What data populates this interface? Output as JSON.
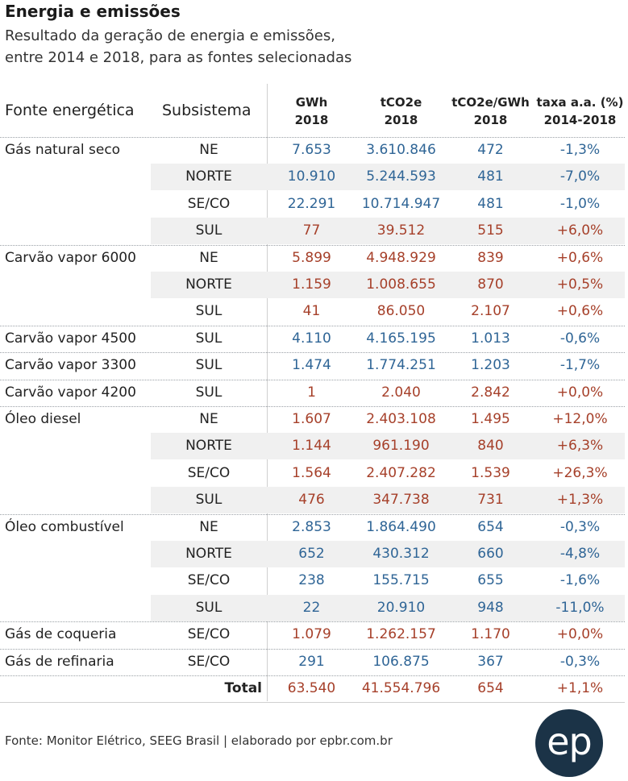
{
  "title": "Energia e emissões",
  "subtitle_line1": "Resultado da geração de energia e emissões,",
  "subtitle_line2": "entre 2014 e 2018, para as fontes selecionadas",
  "footer": "Fonte: Monitor Elétrico, SEEG Brasil | elaborado por epbr.com.br",
  "logo_text": "ep",
  "colors": {
    "negative": "#2f6596",
    "positive": "#a6402a",
    "shade": "#f0f0f0",
    "logo": "#1b3347"
  },
  "chart_data": {
    "type": "table",
    "title": "Energia e emissões",
    "subtitle": "Resultado da geração de energia e emissões, entre 2014 e 2018, para as fontes selecionadas",
    "columns": [
      {
        "label": "Fonte energética"
      },
      {
        "label": "Subsistema"
      },
      {
        "label": "GWh",
        "sub": "2018"
      },
      {
        "label": "tCO2e",
        "sub": "2018"
      },
      {
        "label": "tCO2e/GWh",
        "sub": "2018"
      },
      {
        "label": "taxa a.a. (%)",
        "sub": "2014-2018"
      }
    ],
    "groups": [
      {
        "fonte": "Gás natural seco",
        "rows": [
          {
            "sub": "NE",
            "gwh": "7.653",
            "tco2e": "3.610.846",
            "ratio": "472",
            "taxa": "-1,3%"
          },
          {
            "sub": "NORTE",
            "gwh": "10.910",
            "tco2e": "5.244.593",
            "ratio": "481",
            "taxa": "-7,0%"
          },
          {
            "sub": "SE/CO",
            "gwh": "22.291",
            "tco2e": "10.714.947",
            "ratio": "481",
            "taxa": "-1,0%"
          },
          {
            "sub": "SUL",
            "gwh": "77",
            "tco2e": "39.512",
            "ratio": "515",
            "taxa": "+6,0%"
          }
        ]
      },
      {
        "fonte": "Carvão vapor 6000",
        "rows": [
          {
            "sub": "NE",
            "gwh": "5.899",
            "tco2e": "4.948.929",
            "ratio": "839",
            "taxa": "+0,6%"
          },
          {
            "sub": "NORTE",
            "gwh": "1.159",
            "tco2e": "1.008.655",
            "ratio": "870",
            "taxa": "+0,5%"
          },
          {
            "sub": "SUL",
            "gwh": "41",
            "tco2e": "86.050",
            "ratio": "2.107",
            "taxa": "+0,6%"
          }
        ]
      },
      {
        "fonte": "Carvão vapor 4500",
        "rows": [
          {
            "sub": "SUL",
            "gwh": "4.110",
            "tco2e": "4.165.195",
            "ratio": "1.013",
            "taxa": "-0,6%"
          }
        ]
      },
      {
        "fonte": "Carvão vapor 3300",
        "rows": [
          {
            "sub": "SUL",
            "gwh": "1.474",
            "tco2e": "1.774.251",
            "ratio": "1.203",
            "taxa": "-1,7%"
          }
        ]
      },
      {
        "fonte": "Carvão vapor 4200",
        "rows": [
          {
            "sub": "SUL",
            "gwh": "1",
            "tco2e": "2.040",
            "ratio": "2.842",
            "taxa": "+0,0%"
          }
        ]
      },
      {
        "fonte": "Óleo diesel",
        "rows": [
          {
            "sub": "NE",
            "gwh": "1.607",
            "tco2e": "2.403.108",
            "ratio": "1.495",
            "taxa": "+12,0%"
          },
          {
            "sub": "NORTE",
            "gwh": "1.144",
            "tco2e": "961.190",
            "ratio": "840",
            "taxa": "+6,3%"
          },
          {
            "sub": "SE/CO",
            "gwh": "1.564",
            "tco2e": "2.407.282",
            "ratio": "1.539",
            "taxa": "+26,3%"
          },
          {
            "sub": "SUL",
            "gwh": "476",
            "tco2e": "347.738",
            "ratio": "731",
            "taxa": "+1,3%"
          }
        ]
      },
      {
        "fonte": "Óleo combustível",
        "rows": [
          {
            "sub": "NE",
            "gwh": "2.853",
            "tco2e": "1.864.490",
            "ratio": "654",
            "taxa": "-0,3%"
          },
          {
            "sub": "NORTE",
            "gwh": "652",
            "tco2e": "430.312",
            "ratio": "660",
            "taxa": "-4,8%"
          },
          {
            "sub": "SE/CO",
            "gwh": "238",
            "tco2e": "155.715",
            "ratio": "655",
            "taxa": "-1,6%"
          },
          {
            "sub": "SUL",
            "gwh": "22",
            "tco2e": "20.910",
            "ratio": "948",
            "taxa": "-11,0%"
          }
        ]
      },
      {
        "fonte": "Gás de coqueria",
        "rows": [
          {
            "sub": "SE/CO",
            "gwh": "1.079",
            "tco2e": "1.262.157",
            "ratio": "1.170",
            "taxa": "+0,0%"
          }
        ]
      },
      {
        "fonte": "Gás de refinaria",
        "rows": [
          {
            "sub": "SE/CO",
            "gwh": "291",
            "tco2e": "106.875",
            "ratio": "367",
            "taxa": "-0,3%"
          }
        ]
      }
    ],
    "total": {
      "label": "Total",
      "gwh": "63.540",
      "tco2e": "41.554.796",
      "ratio": "654",
      "taxa": "+1,1%"
    }
  }
}
